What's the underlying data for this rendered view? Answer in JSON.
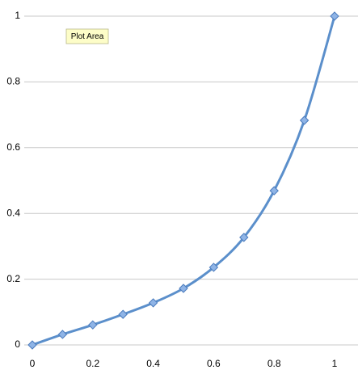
{
  "chart_data": {
    "type": "line",
    "x": [
      0,
      0.1,
      0.2,
      0.3,
      0.4,
      0.5,
      0.6,
      0.7,
      0.8,
      0.9,
      1
    ],
    "series": [
      {
        "color": "#5b8fcb",
        "values": [
          0,
          0.032,
          0.061,
          0.093,
          0.128,
          0.172,
          0.236,
          0.327,
          0.469,
          0.683,
          1
        ]
      }
    ],
    "xlim": [
      0,
      1
    ],
    "xticks": [
      0,
      0.2,
      0.4,
      0.6,
      0.8,
      1
    ],
    "ylim": [
      0,
      1
    ],
    "yticks": [
      0,
      0.2,
      0.4,
      0.6,
      0.8,
      1
    ],
    "grid": true,
    "smooth": true,
    "marker": "diamond",
    "tooltip": "Plot Area"
  }
}
